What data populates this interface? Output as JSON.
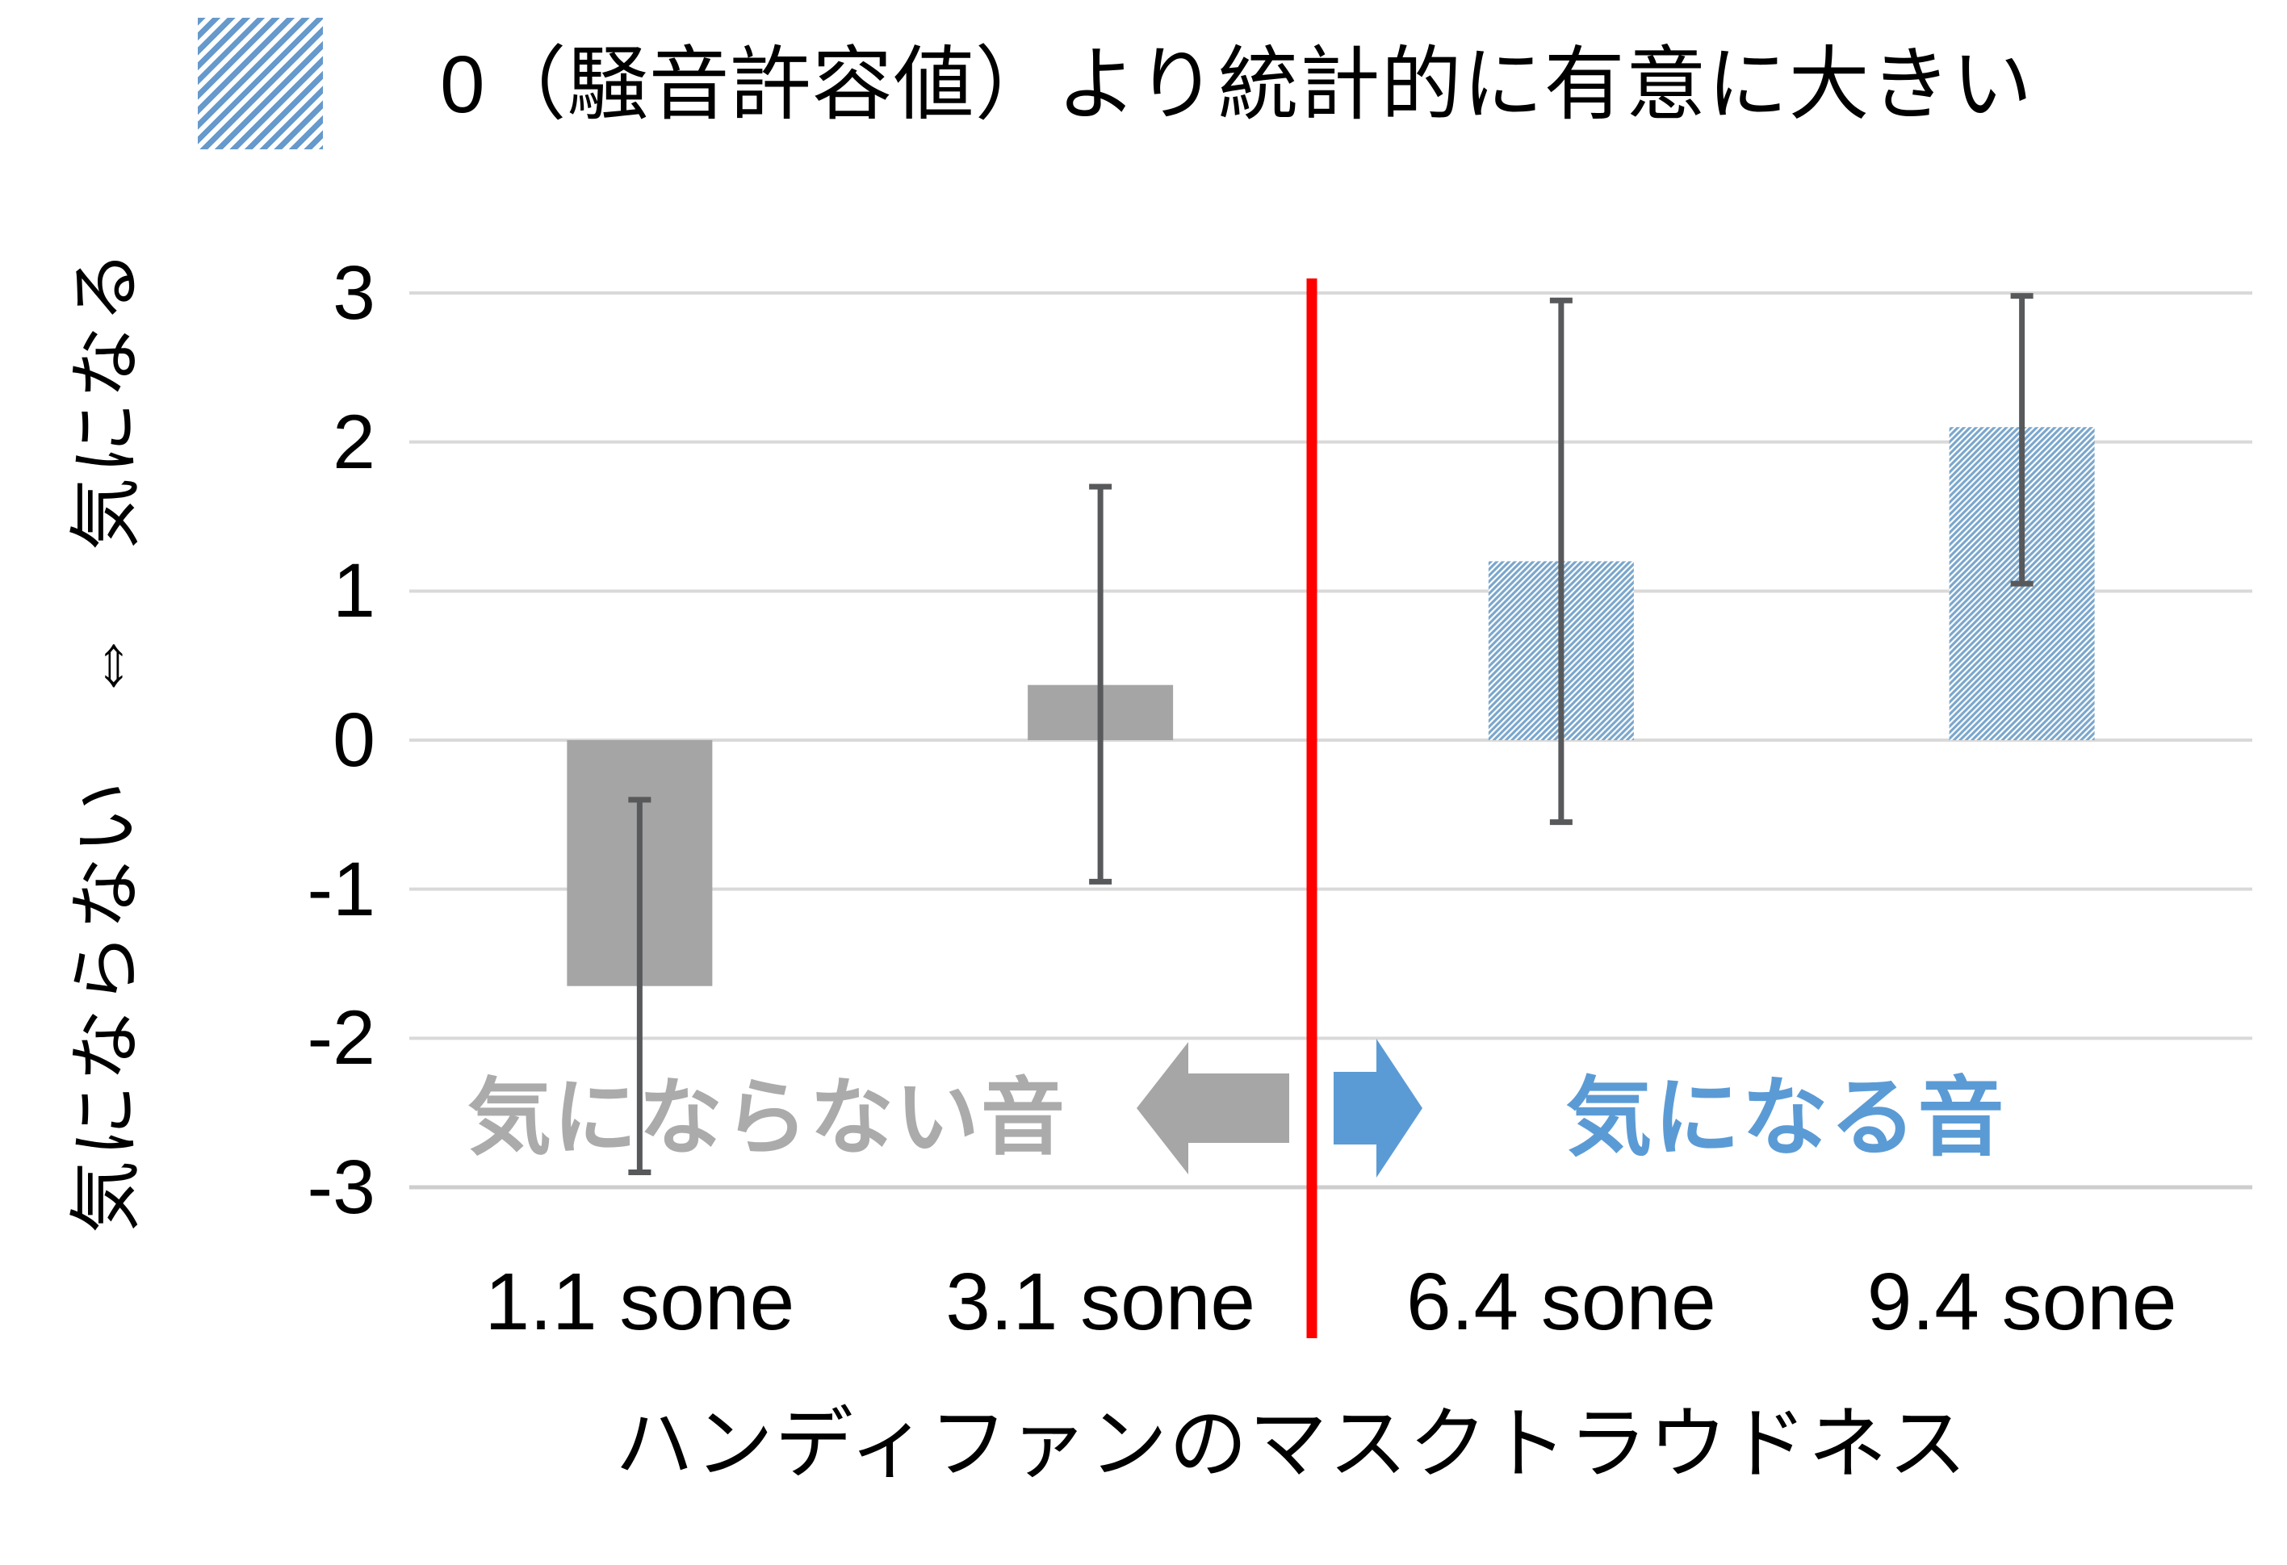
{
  "legend": {
    "label": "0（騒音許容値）より統計的に有意に大きい"
  },
  "chart_data": {
    "type": "bar",
    "categories": [
      "1.1 sone",
      "3.1 sone",
      "6.4 sone",
      "9.4 sone"
    ],
    "values": [
      -1.65,
      0.37,
      1.2,
      2.1
    ],
    "error_low": [
      -2.9,
      -0.95,
      -0.55,
      1.05
    ],
    "error_high": [
      -0.4,
      1.7,
      2.95,
      2.98
    ],
    "bar_styles": [
      "solid-gray",
      "solid-gray",
      "hatched-blue",
      "hatched-blue"
    ],
    "xlabel": "ハンディファンのマスクトラウドネス",
    "ylabel": "気にならない　⇔　気になる",
    "ylim": [
      -3,
      3
    ],
    "yticks": [
      "3",
      "2",
      "1",
      "0",
      "-1",
      "-2",
      "-3"
    ],
    "grid": true,
    "legend_meaning": "0（騒音許容値）より統計的に有意に大きい",
    "divider": {
      "between": [
        "3.1 sone",
        "6.4 sone"
      ],
      "color": "#ff0000"
    }
  },
  "annotations": {
    "left": {
      "text": "気にならない音",
      "color": "#ababab",
      "arrow_direction": "left"
    },
    "right": {
      "text": "気になる音",
      "color": "#5b9bd5",
      "arrow_direction": "right"
    }
  },
  "colors": {
    "bar_gray": "#a5a5a5",
    "bar_hatch_blue": "#7ba7cd",
    "legend_hatch_blue": "#6699cc",
    "error_bar": "#58595b",
    "gridline": "#d9d9d9",
    "gridline_bottom": "#cdcdcd",
    "divider_red": "#ff0000",
    "arrow_gray": "#a6a6a6",
    "accent_blue": "#5b9bd5",
    "background": "#ffffff",
    "text": "#000000"
  }
}
